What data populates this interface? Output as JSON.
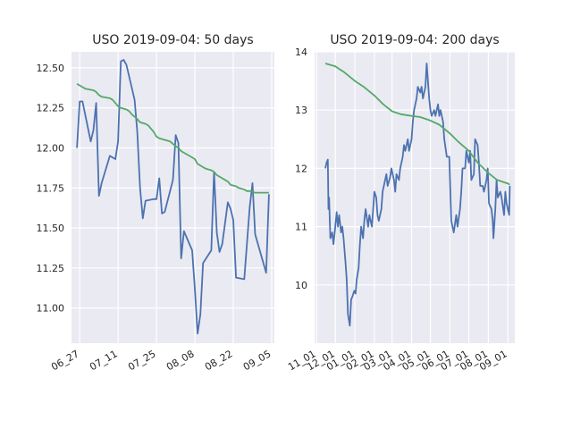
{
  "chart_data": [
    {
      "type": "line",
      "title": "USO 2019-09-04: 50 days",
      "xlabel": "",
      "ylabel": "",
      "x_ticks": [
        "06_27",
        "07_11",
        "07_25",
        "08_08",
        "08_22",
        "09_05"
      ],
      "y_ticks": [
        "11.00",
        "11.25",
        "11.50",
        "11.75",
        "12.00",
        "12.25",
        "12.50"
      ],
      "xlim": [
        "2019-06-24",
        "2019-09-06"
      ],
      "ylim": [
        10.78,
        12.6
      ],
      "grid": true,
      "series": [
        {
          "color": "#4c72b0",
          "points": [
            [
              "2019-06-26",
              12.0
            ],
            [
              "2019-06-27",
              12.29
            ],
            [
              "2019-06-28",
              12.29
            ],
            [
              "2019-07-01",
              12.04
            ],
            [
              "2019-07-02",
              12.11
            ],
            [
              "2019-07-03",
              12.28
            ],
            [
              "2019-07-04",
              11.7
            ],
            [
              "2019-07-05",
              11.78
            ],
            [
              "2019-07-08",
              11.95
            ],
            [
              "2019-07-09",
              11.94
            ],
            [
              "2019-07-10",
              11.93
            ],
            [
              "2019-07-11",
              12.04
            ],
            [
              "2019-07-12",
              12.54
            ],
            [
              "2019-07-13",
              12.55
            ],
            [
              "2019-07-14",
              12.52
            ],
            [
              "2019-07-17",
              12.3
            ],
            [
              "2019-07-18",
              12.1
            ],
            [
              "2019-07-19",
              11.75
            ],
            [
              "2019-07-20",
              11.56
            ],
            [
              "2019-07-21",
              11.67
            ],
            [
              "2019-07-24",
              11.68
            ],
            [
              "2019-07-25",
              11.68
            ],
            [
              "2019-07-26",
              11.81
            ],
            [
              "2019-07-27",
              11.59
            ],
            [
              "2019-07-28",
              11.6
            ],
            [
              "2019-07-31",
              11.8
            ],
            [
              "2019-08-01",
              12.08
            ],
            [
              "2019-08-02",
              12.03
            ],
            [
              "2019-08-03",
              11.31
            ],
            [
              "2019-08-04",
              11.48
            ],
            [
              "2019-08-07",
              11.36
            ],
            [
              "2019-08-08",
              11.12
            ],
            [
              "2019-08-09",
              10.84
            ],
            [
              "2019-08-10",
              10.96
            ],
            [
              "2019-08-11",
              11.28
            ],
            [
              "2019-08-14",
              11.36
            ],
            [
              "2019-08-15",
              11.85
            ],
            [
              "2019-08-16",
              11.47
            ],
            [
              "2019-08-17",
              11.35
            ],
            [
              "2019-08-18",
              11.4
            ],
            [
              "2019-08-20",
              11.66
            ],
            [
              "2019-08-21",
              11.62
            ],
            [
              "2019-08-22",
              11.55
            ],
            [
              "2019-08-23",
              11.19
            ],
            [
              "2019-08-26",
              11.18
            ],
            [
              "2019-08-28",
              11.63
            ],
            [
              "2019-08-29",
              11.78
            ],
            [
              "2019-08-30",
              11.46
            ],
            [
              "2019-09-03",
              11.22
            ],
            [
              "2019-09-04",
              11.71
            ]
          ]
        },
        {
          "color": "#55a868",
          "points": [
            [
              "2019-06-26",
              12.4
            ],
            [
              "2019-06-27",
              12.39
            ],
            [
              "2019-06-28",
              12.38
            ],
            [
              "2019-06-29",
              12.37
            ],
            [
              "2019-07-02",
              12.36
            ],
            [
              "2019-07-03",
              12.35
            ],
            [
              "2019-07-04",
              12.33
            ],
            [
              "2019-07-05",
              12.32
            ],
            [
              "2019-07-08",
              12.31
            ],
            [
              "2019-07-09",
              12.3
            ],
            [
              "2019-07-10",
              12.28
            ],
            [
              "2019-07-11",
              12.26
            ],
            [
              "2019-07-12",
              12.25
            ],
            [
              "2019-07-14",
              12.24
            ],
            [
              "2019-07-15",
              12.23
            ],
            [
              "2019-07-16",
              12.21
            ],
            [
              "2019-07-18",
              12.18
            ],
            [
              "2019-07-19",
              12.16
            ],
            [
              "2019-07-21",
              12.15
            ],
            [
              "2019-07-22",
              12.14
            ],
            [
              "2019-07-24",
              12.1
            ],
            [
              "2019-07-25",
              12.07
            ],
            [
              "2019-07-26",
              12.06
            ],
            [
              "2019-07-28",
              12.05
            ],
            [
              "2019-07-30",
              12.04
            ],
            [
              "2019-08-01",
              12.01
            ],
            [
              "2019-08-02",
              12.0
            ],
            [
              "2019-08-03",
              11.98
            ],
            [
              "2019-08-05",
              11.96
            ],
            [
              "2019-08-06",
              11.95
            ],
            [
              "2019-08-08",
              11.93
            ],
            [
              "2019-08-09",
              11.9
            ],
            [
              "2019-08-11",
              11.88
            ],
            [
              "2019-08-12",
              11.87
            ],
            [
              "2019-08-14",
              11.86
            ],
            [
              "2019-08-15",
              11.85
            ],
            [
              "2019-08-16",
              11.83
            ],
            [
              "2019-08-18",
              11.81
            ],
            [
              "2019-08-19",
              11.8
            ],
            [
              "2019-08-20",
              11.79
            ],
            [
              "2019-08-21",
              11.77
            ],
            [
              "2019-08-23",
              11.76
            ],
            [
              "2019-08-24",
              11.75
            ],
            [
              "2019-08-26",
              11.74
            ],
            [
              "2019-08-27",
              11.73
            ],
            [
              "2019-08-28",
              11.73
            ],
            [
              "2019-08-30",
              11.72
            ],
            [
              "2019-09-01",
              11.72
            ],
            [
              "2019-09-02",
              11.72
            ],
            [
              "2019-09-04",
              11.72
            ]
          ]
        }
      ]
    },
    {
      "type": "line",
      "title": "USO 2019-09-04: 200 days",
      "xlabel": "",
      "ylabel": "",
      "x_ticks": [
        "11_01",
        "12_01",
        "01_01",
        "02_01",
        "03_01",
        "04_01",
        "05_01",
        "06_01",
        "07_01",
        "08_01",
        "09_01"
      ],
      "y_ticks": [
        "10",
        "11",
        "12",
        "13",
        "14"
      ],
      "xlim": [
        "2018-10-29",
        "2019-09-12"
      ],
      "ylim": [
        9.0,
        14.0
      ],
      "grid": true,
      "series": [
        {
          "color": "#4c72b0",
          "points": [
            [
              "2018-11-15",
              12.0
            ],
            [
              "2018-11-17",
              12.1
            ],
            [
              "2018-11-19",
              12.15
            ],
            [
              "2018-11-20",
              11.3
            ],
            [
              "2018-11-21",
              11.5
            ],
            [
              "2018-11-23",
              10.8
            ],
            [
              "2018-11-26",
              10.9
            ],
            [
              "2018-11-28",
              10.7
            ],
            [
              "2018-11-30",
              10.9
            ],
            [
              "2018-12-03",
              11.25
            ],
            [
              "2018-12-05",
              11.0
            ],
            [
              "2018-12-07",
              11.2
            ],
            [
              "2018-12-10",
              10.9
            ],
            [
              "2018-12-12",
              11.0
            ],
            [
              "2018-12-14",
              10.8
            ],
            [
              "2018-12-17",
              10.4
            ],
            [
              "2018-12-19",
              10.1
            ],
            [
              "2018-12-21",
              9.5
            ],
            [
              "2018-12-24",
              9.3
            ],
            [
              "2018-12-26",
              9.75
            ],
            [
              "2018-12-28",
              9.8
            ],
            [
              "2018-12-31",
              9.9
            ],
            [
              "2019-01-02",
              9.85
            ],
            [
              "2019-01-04",
              10.1
            ],
            [
              "2019-01-07",
              10.3
            ],
            [
              "2019-01-09",
              10.7
            ],
            [
              "2019-01-11",
              11.0
            ],
            [
              "2019-01-14",
              10.8
            ],
            [
              "2019-01-16",
              11.1
            ],
            [
              "2019-01-18",
              11.3
            ],
            [
              "2019-01-22",
              11.0
            ],
            [
              "2019-01-24",
              11.2
            ],
            [
              "2019-01-28",
              11.0
            ],
            [
              "2019-01-30",
              11.3
            ],
            [
              "2019-02-01",
              11.6
            ],
            [
              "2019-02-04",
              11.5
            ],
            [
              "2019-02-06",
              11.2
            ],
            [
              "2019-02-08",
              11.1
            ],
            [
              "2019-02-12",
              11.3
            ],
            [
              "2019-02-14",
              11.6
            ],
            [
              "2019-02-18",
              11.8
            ],
            [
              "2019-02-20",
              11.9
            ],
            [
              "2019-02-22",
              11.7
            ],
            [
              "2019-02-26",
              11.85
            ],
            [
              "2019-02-28",
              12.0
            ],
            [
              "2019-03-04",
              11.8
            ],
            [
              "2019-03-06",
              11.6
            ],
            [
              "2019-03-08",
              11.9
            ],
            [
              "2019-03-12",
              11.8
            ],
            [
              "2019-03-14",
              12.0
            ],
            [
              "2019-03-18",
              12.2
            ],
            [
              "2019-03-20",
              12.4
            ],
            [
              "2019-03-22",
              12.3
            ],
            [
              "2019-03-26",
              12.5
            ],
            [
              "2019-03-28",
              12.3
            ],
            [
              "2019-04-01",
              12.5
            ],
            [
              "2019-04-03",
              12.8
            ],
            [
              "2019-04-05",
              13.0
            ],
            [
              "2019-04-09",
              13.2
            ],
            [
              "2019-04-11",
              13.4
            ],
            [
              "2019-04-15",
              13.3
            ],
            [
              "2019-04-17",
              13.4
            ],
            [
              "2019-04-19",
              13.2
            ],
            [
              "2019-04-23",
              13.4
            ],
            [
              "2019-04-25",
              13.8
            ],
            [
              "2019-04-29",
              13.2
            ],
            [
              "2019-05-01",
              13.0
            ],
            [
              "2019-05-03",
              12.9
            ],
            [
              "2019-05-07",
              13.0
            ],
            [
              "2019-05-09",
              12.9
            ],
            [
              "2019-05-13",
              13.1
            ],
            [
              "2019-05-15",
              12.9
            ],
            [
              "2019-05-17",
              13.0
            ],
            [
              "2019-05-21",
              12.8
            ],
            [
              "2019-05-23",
              12.5
            ],
            [
              "2019-05-27",
              12.2
            ],
            [
              "2019-05-31",
              12.2
            ],
            [
              "2019-06-03",
              11.1
            ],
            [
              "2019-06-05",
              11.0
            ],
            [
              "2019-06-07",
              10.9
            ],
            [
              "2019-06-11",
              11.2
            ],
            [
              "2019-06-13",
              11.0
            ],
            [
              "2019-06-17",
              11.3
            ],
            [
              "2019-06-19",
              11.6
            ],
            [
              "2019-06-21",
              12.0
            ],
            [
              "2019-06-25",
              12.0
            ],
            [
              "2019-06-27",
              12.3
            ],
            [
              "2019-07-01",
              12.1
            ],
            [
              "2019-07-03",
              12.3
            ],
            [
              "2019-07-05",
              11.8
            ],
            [
              "2019-07-09",
              11.9
            ],
            [
              "2019-07-11",
              12.5
            ],
            [
              "2019-07-15",
              12.4
            ],
            [
              "2019-07-17",
              12.1
            ],
            [
              "2019-07-19",
              11.7
            ],
            [
              "2019-07-23",
              11.7
            ],
            [
              "2019-07-25",
              11.6
            ],
            [
              "2019-07-29",
              11.8
            ],
            [
              "2019-07-31",
              12.0
            ],
            [
              "2019-08-02",
              11.4
            ],
            [
              "2019-08-06",
              11.3
            ],
            [
              "2019-08-08",
              11.1
            ],
            [
              "2019-08-09",
              10.8
            ],
            [
              "2019-08-12",
              11.3
            ],
            [
              "2019-08-14",
              11.8
            ],
            [
              "2019-08-16",
              11.5
            ],
            [
              "2019-08-20",
              11.6
            ],
            [
              "2019-08-22",
              11.5
            ],
            [
              "2019-08-26",
              11.2
            ],
            [
              "2019-08-28",
              11.6
            ],
            [
              "2019-08-30",
              11.4
            ],
            [
              "2019-09-03",
              11.2
            ],
            [
              "2019-09-04",
              11.7
            ]
          ]
        },
        {
          "color": "#55a868",
          "points": [
            [
              "2018-11-15",
              13.8
            ],
            [
              "2018-12-01",
              13.75
            ],
            [
              "2018-12-15",
              13.65
            ],
            [
              "2019-01-01",
              13.5
            ],
            [
              "2019-01-15",
              13.4
            ],
            [
              "2019-02-01",
              13.25
            ],
            [
              "2019-02-15",
              13.1
            ],
            [
              "2019-03-01",
              12.98
            ],
            [
              "2019-03-15",
              12.93
            ],
            [
              "2019-04-01",
              12.9
            ],
            [
              "2019-04-15",
              12.88
            ],
            [
              "2019-05-01",
              12.82
            ],
            [
              "2019-05-15",
              12.75
            ],
            [
              "2019-06-01",
              12.6
            ],
            [
              "2019-06-15",
              12.45
            ],
            [
              "2019-07-01",
              12.3
            ],
            [
              "2019-07-15",
              12.1
            ],
            [
              "2019-08-01",
              11.92
            ],
            [
              "2019-08-15",
              11.8
            ],
            [
              "2019-09-01",
              11.74
            ],
            [
              "2019-09-04",
              11.72
            ]
          ]
        }
      ]
    }
  ]
}
